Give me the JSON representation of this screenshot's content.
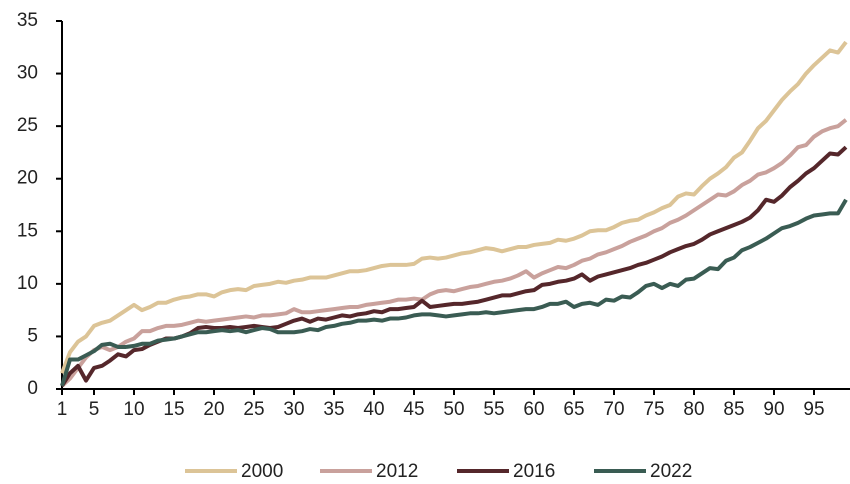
{
  "chart_data": {
    "type": "line",
    "x": [
      1,
      2,
      3,
      4,
      5,
      6,
      7,
      8,
      9,
      10,
      11,
      12,
      13,
      14,
      15,
      16,
      17,
      18,
      19,
      20,
      21,
      22,
      23,
      24,
      25,
      26,
      27,
      28,
      29,
      30,
      31,
      32,
      33,
      34,
      35,
      36,
      37,
      38,
      39,
      40,
      41,
      42,
      43,
      44,
      45,
      46,
      47,
      48,
      49,
      50,
      51,
      52,
      53,
      54,
      55,
      56,
      57,
      58,
      59,
      60,
      61,
      62,
      63,
      64,
      65,
      66,
      67,
      68,
      69,
      70,
      71,
      72,
      73,
      74,
      75,
      76,
      77,
      78,
      79,
      80,
      81,
      82,
      83,
      84,
      85,
      86,
      87,
      88,
      89,
      90,
      91,
      92,
      93,
      94,
      95,
      96,
      97,
      98,
      99
    ],
    "series": [
      {
        "name": "2000",
        "color": "#dcc497",
        "values": [
          1.5,
          3.5,
          4.5,
          5,
          6,
          6.3,
          6.5,
          7,
          7.5,
          8,
          7.5,
          7.8,
          8.2,
          8.2,
          8.5,
          8.7,
          8.8,
          9,
          9,
          8.8,
          9.2,
          9.4,
          9.5,
          9.4,
          9.8,
          9.9,
          10,
          10.2,
          10.1,
          10.3,
          10.4,
          10.6,
          10.6,
          10.6,
          10.8,
          11,
          11.2,
          11.2,
          11.3,
          11.5,
          11.7,
          11.8,
          11.8,
          11.8,
          11.9,
          12.4,
          12.5,
          12.4,
          12.5,
          12.7,
          12.9,
          13,
          13.2,
          13.4,
          13.3,
          13.1,
          13.3,
          13.5,
          13.5,
          13.7,
          13.8,
          13.9,
          14.2,
          14.1,
          14.3,
          14.6,
          15,
          15.1,
          15.1,
          15.4,
          15.8,
          16,
          16.1,
          16.5,
          16.8,
          17.2,
          17.5,
          18.3,
          18.6,
          18.5,
          19.3,
          20,
          20.5,
          21.1,
          22,
          22.5,
          23.6,
          24.8,
          25.5,
          26.5,
          27.5,
          28.3,
          29,
          30,
          30.8,
          31.5,
          32.2,
          32,
          33
        ]
      },
      {
        "name": "2012",
        "color": "#c9a19c",
        "values": [
          0.3,
          1,
          2,
          3,
          3.7,
          4,
          3.7,
          4,
          4.5,
          4.8,
          5.5,
          5.5,
          5.8,
          6,
          6,
          6.1,
          6.3,
          6.5,
          6.4,
          6.5,
          6.6,
          6.7,
          6.8,
          6.9,
          6.8,
          7,
          7,
          7.1,
          7.2,
          7.6,
          7.3,
          7.3,
          7.4,
          7.5,
          7.6,
          7.7,
          7.8,
          7.8,
          8,
          8.1,
          8.2,
          8.3,
          8.5,
          8.5,
          8.6,
          8.5,
          9,
          9.3,
          9.4,
          9.3,
          9.5,
          9.7,
          9.8,
          10,
          10.2,
          10.3,
          10.5,
          10.8,
          11.2,
          10.6,
          11,
          11.3,
          11.6,
          11.5,
          11.8,
          12.2,
          12.4,
          12.8,
          13,
          13.3,
          13.6,
          14,
          14.3,
          14.6,
          15,
          15.3,
          15.8,
          16.1,
          16.5,
          17,
          17.5,
          18,
          18.5,
          18.4,
          18.8,
          19.4,
          19.8,
          20.4,
          20.6,
          21,
          21.5,
          22.2,
          23,
          23.2,
          24,
          24.5,
          24.8,
          25,
          25.6
        ]
      },
      {
        "name": "2016",
        "color": "#55272b",
        "values": [
          0.3,
          1.5,
          2.2,
          0.8,
          2,
          2.2,
          2.7,
          3.3,
          3.1,
          3.7,
          3.8,
          4.2,
          4.5,
          4.8,
          4.8,
          5,
          5.3,
          5.8,
          5.9,
          5.8,
          5.8,
          5.9,
          5.8,
          5.9,
          6,
          5.9,
          5.8,
          5.9,
          6.2,
          6.5,
          6.7,
          6.4,
          6.7,
          6.6,
          6.8,
          7,
          6.9,
          7.1,
          7.2,
          7.4,
          7.3,
          7.6,
          7.6,
          7.7,
          7.8,
          8.4,
          7.8,
          7.9,
          8,
          8.1,
          8.1,
          8.2,
          8.3,
          8.5,
          8.7,
          8.9,
          8.9,
          9.1,
          9.3,
          9.4,
          9.9,
          10,
          10.2,
          10.3,
          10.5,
          10.9,
          10.3,
          10.7,
          10.9,
          11.1,
          11.3,
          11.5,
          11.8,
          12,
          12.3,
          12.6,
          13,
          13.3,
          13.6,
          13.8,
          14.2,
          14.7,
          15,
          15.3,
          15.6,
          15.9,
          16.3,
          17,
          18,
          17.8,
          18.4,
          19.2,
          19.8,
          20.5,
          21,
          21.7,
          22.4,
          22.3,
          23
        ]
      },
      {
        "name": "2022",
        "color": "#3a5c53",
        "values": [
          0.3,
          2.8,
          2.8,
          3.2,
          3.6,
          4.2,
          4.3,
          4,
          4,
          4.1,
          4.3,
          4.3,
          4.6,
          4.7,
          4.8,
          5,
          5.2,
          5.4,
          5.4,
          5.5,
          5.6,
          5.5,
          5.6,
          5.4,
          5.6,
          5.8,
          5.7,
          5.4,
          5.4,
          5.4,
          5.5,
          5.7,
          5.6,
          5.9,
          6,
          6.2,
          6.3,
          6.5,
          6.5,
          6.6,
          6.5,
          6.7,
          6.7,
          6.8,
          7,
          7.1,
          7.1,
          7,
          6.9,
          7,
          7.1,
          7.2,
          7.2,
          7.3,
          7.2,
          7.3,
          7.4,
          7.5,
          7.6,
          7.6,
          7.8,
          8.1,
          8.1,
          8.3,
          7.8,
          8.1,
          8.2,
          8,
          8.5,
          8.4,
          8.8,
          8.7,
          9.2,
          9.8,
          10,
          9.6,
          10,
          9.8,
          10.4,
          10.5,
          11,
          11.5,
          11.4,
          12.2,
          12.5,
          13.2,
          13.5,
          13.9,
          14.3,
          14.8,
          15.3,
          15.5,
          15.8,
          16.2,
          16.5,
          16.6,
          16.7,
          16.7,
          18
        ]
      }
    ],
    "xlim": [
      1,
      99
    ],
    "xticks": [
      1,
      5,
      10,
      15,
      20,
      25,
      30,
      35,
      40,
      45,
      50,
      55,
      60,
      65,
      70,
      75,
      80,
      85,
      90,
      95
    ],
    "ylim": [
      0,
      35
    ],
    "yticks": [
      0,
      5,
      10,
      15,
      20,
      25,
      30,
      35
    ]
  }
}
